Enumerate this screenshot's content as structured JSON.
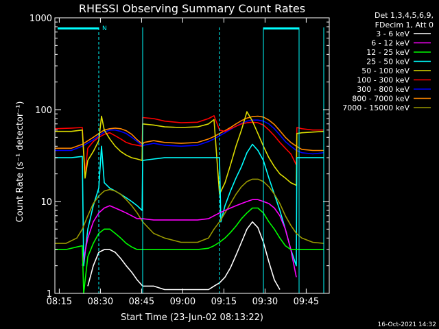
{
  "chart_data": {
    "type": "line",
    "title": "RHESSI Observing Summary Count Rates",
    "xlabel": "Start Time (23-Jun-02 08:13:22)",
    "ylabel": "Count Rate (s⁻¹ detector⁻¹)",
    "yscale": "log",
    "ylim": [
      1,
      1000
    ],
    "xlim_minutes": [
      0,
      100
    ],
    "x_ticks": [
      {
        "label": "08:15",
        "t": 1.6
      },
      {
        "label": "08:30",
        "t": 16.6
      },
      {
        "label": "08:45",
        "t": 31.6
      },
      {
        "label": "09:00",
        "t": 46.6
      },
      {
        "label": "09:15",
        "t": 61.6
      },
      {
        "label": "09:30",
        "t": 76.6
      },
      {
        "label": "09:45",
        "t": 91.6
      }
    ],
    "y_ticks": [
      {
        "label": "1",
        "v": 1
      },
      {
        "label": "10",
        "v": 10
      },
      {
        "label": "100",
        "v": 100
      },
      {
        "label": "1000",
        "v": 1000
      }
    ],
    "legend": {
      "placement": "right",
      "header": [
        "Det 1,3,4,5,6,9,",
        "FDecim 1, Att 0"
      ],
      "entries": [
        {
          "label": "3 - 6 keV",
          "color": "#000000"
        },
        {
          "label": "6 - 12 keV",
          "color": "#ff00ff"
        },
        {
          "label": "12 - 25 keV",
          "color": "#00ff00"
        },
        {
          "label": "25 - 50 keV",
          "color": "#00ffff"
        },
        {
          "label": "50 - 100 keV",
          "color": "#dddd00"
        },
        {
          "label": "100 - 300 keV",
          "color": "#ff0000"
        },
        {
          "label": "300 - 800 keV",
          "color": "#0000ff"
        },
        {
          "label": "800 - 7000 keV",
          "color": "#ff8800"
        },
        {
          "label": "7000 - 15000 keV",
          "color": "#999900"
        }
      ]
    },
    "flag_marker": "N",
    "night_periods_minutes": [
      [
        1,
        16
      ],
      [
        76,
        89
      ]
    ],
    "saa_boundaries_minutes": [
      16,
      32,
      60,
      76,
      89,
      98
    ],
    "series": [
      {
        "color": "#ff8800",
        "x": [
          0,
          6,
          10,
          14,
          16,
          18,
          20,
          22,
          24,
          26,
          28,
          30,
          32,
          32.5,
          36,
          40,
          46,
          52,
          56,
          58,
          60,
          62,
          64,
          66,
          68,
          70,
          72,
          74,
          76,
          78,
          80,
          82,
          84,
          86,
          88,
          90,
          94,
          98
        ],
        "y": [
          38,
          38,
          42,
          50,
          55,
          60,
          62,
          63,
          62,
          59,
          54,
          47,
          42,
          44,
          46,
          44,
          43,
          44,
          48,
          51,
          55,
          59,
          64,
          70,
          76,
          81,
          84,
          85,
          83,
          77,
          69,
          59,
          50,
          44,
          40,
          37,
          36,
          36
        ]
      },
      {
        "color": "#0000ff",
        "x": [
          0,
          6,
          10,
          14,
          16,
          18,
          20,
          22,
          24,
          26,
          28,
          30,
          32,
          32.5,
          36,
          40,
          46,
          52,
          56,
          58,
          60,
          62,
          64,
          66,
          68,
          70,
          72,
          74,
          76,
          78,
          80,
          82,
          84,
          86,
          88,
          90,
          94,
          98
        ],
        "y": [
          36,
          36,
          40,
          47,
          52,
          57,
          60,
          60,
          58,
          55,
          50,
          45,
          40,
          41,
          43,
          41,
          40,
          41,
          45,
          48,
          52,
          56,
          61,
          66,
          71,
          75,
          77,
          77,
          75,
          70,
          62,
          53,
          45,
          40,
          36,
          34,
          33,
          34
        ]
      },
      {
        "color": "#ff0000",
        "x": [
          0,
          6,
          10,
          11,
          12,
          14,
          16,
          18,
          20,
          22,
          24,
          26,
          28,
          30,
          31.8,
          32,
          36,
          40,
          46,
          52,
          56,
          58,
          60,
          62,
          64,
          66,
          68,
          70,
          72,
          74,
          76,
          78,
          80,
          82,
          84,
          86,
          88,
          88.2,
          90,
          94,
          98
        ],
        "y": [
          62,
          63,
          64,
          20,
          38,
          45,
          50,
          54,
          56,
          52,
          48,
          44,
          42,
          41,
          40,
          82,
          80,
          75,
          72,
          73,
          80,
          86,
          60,
          58,
          62,
          66,
          70,
          72,
          73,
          72,
          68,
          60,
          52,
          44,
          38,
          33,
          25,
          64,
          62,
          60,
          60
        ]
      },
      {
        "color": "#dddd00",
        "x": [
          0,
          6,
          10,
          11,
          12,
          14,
          16,
          17,
          18,
          20,
          22,
          24,
          26,
          28,
          30,
          31.8,
          32,
          36,
          40,
          46,
          52,
          56,
          58,
          60,
          62,
          64,
          66,
          68,
          70,
          72,
          74,
          76,
          78,
          80,
          82,
          84,
          86,
          88,
          88.2,
          90,
          94,
          98
        ],
        "y": [
          58,
          58,
          60,
          18,
          28,
          35,
          46,
          85,
          60,
          48,
          40,
          35,
          32,
          30,
          29,
          28,
          70,
          68,
          65,
          64,
          65,
          70,
          78,
          12,
          16,
          25,
          40,
          60,
          95,
          75,
          55,
          40,
          30,
          24,
          20,
          18,
          16,
          15,
          55,
          56,
          57,
          58
        ]
      },
      {
        "color": "#00ffff",
        "x": [
          0,
          6,
          10,
          10.5,
          12,
          14,
          16,
          17,
          18,
          20,
          22,
          24,
          26,
          28,
          30,
          31.8,
          32,
          36,
          40,
          46,
          52,
          56,
          58,
          60,
          60.5,
          62,
          64,
          66,
          68,
          70,
          72,
          74,
          76,
          78,
          80,
          82,
          84,
          86,
          88,
          88.2,
          90,
          94,
          98
        ],
        "y": [
          30,
          30,
          31,
          2,
          5,
          9,
          14,
          40,
          16,
          14,
          13,
          12,
          11,
          10,
          9,
          8,
          28,
          29,
          30,
          30,
          30,
          30,
          30,
          30,
          6,
          9,
          13,
          18,
          24,
          34,
          42,
          36,
          28,
          18,
          12,
          8,
          5,
          3,
          2,
          30,
          30,
          30,
          30
        ]
      },
      {
        "color": "#999900",
        "x": [
          0,
          4,
          8,
          10,
          12,
          14,
          16,
          18,
          20,
          22,
          24,
          26,
          28,
          30,
          32,
          36,
          40,
          46,
          52,
          56,
          58,
          60,
          62,
          64,
          66,
          68,
          70,
          72,
          74,
          76,
          78,
          80,
          82,
          84,
          86,
          88,
          90,
          94,
          98
        ],
        "y": [
          3.5,
          3.5,
          4,
          5,
          7,
          9.5,
          11.5,
          13,
          13.5,
          13,
          12,
          10.5,
          9,
          7.5,
          6,
          4.5,
          4,
          3.6,
          3.6,
          4,
          5,
          6,
          7.5,
          9.5,
          12,
          14.5,
          16.5,
          17.5,
          17.5,
          16.5,
          14.5,
          12,
          9.5,
          7,
          5.5,
          4.5,
          4,
          3.6,
          3.5
        ]
      },
      {
        "color": "#ff00ff",
        "x": [
          10,
          12,
          14,
          16,
          18,
          20,
          22,
          24,
          26,
          28,
          30,
          32,
          36,
          40,
          46,
          52,
          56,
          58,
          60,
          62,
          64,
          66,
          68,
          70,
          72,
          74,
          76,
          78,
          80,
          82,
          84,
          86,
          88
        ],
        "y": [
          2,
          4,
          6,
          7.5,
          8.5,
          9,
          8.5,
          8,
          7.5,
          7,
          6.5,
          6.5,
          6.3,
          6.3,
          6.3,
          6.3,
          6.5,
          7,
          7.5,
          8,
          8.5,
          9,
          9.5,
          10,
          10.5,
          10.5,
          10,
          9.5,
          8.5,
          7,
          5,
          3,
          1.5
        ]
      },
      {
        "color": "#00ff00",
        "x": [
          0,
          4,
          8,
          10,
          10.5,
          12,
          14,
          16,
          18,
          20,
          22,
          24,
          26,
          28,
          30,
          32,
          36,
          40,
          46,
          52,
          56,
          58,
          60,
          62,
          64,
          66,
          68,
          70,
          72,
          74,
          76,
          78,
          80,
          82,
          84,
          86,
          88,
          90,
          94,
          98
        ],
        "y": [
          3,
          3,
          3.2,
          3.3,
          1,
          2.5,
          3.5,
          4.5,
          5,
          5,
          4.5,
          4,
          3.5,
          3.2,
          3,
          3,
          3,
          3,
          3,
          3,
          3.1,
          3.3,
          3.6,
          4,
          4.6,
          5.4,
          6.5,
          7.5,
          8.5,
          8.5,
          7.5,
          6,
          5,
          4,
          3.3,
          3,
          3,
          3,
          3,
          3
        ]
      },
      {
        "color": "#000000",
        "x": [
          12,
          14,
          16,
          18,
          20,
          22,
          24,
          26,
          28,
          30,
          32,
          36,
          40,
          46,
          52,
          56,
          58,
          60,
          62,
          64,
          66,
          68,
          70,
          72,
          74,
          76,
          78,
          80,
          82
        ],
        "y": [
          1.2,
          2,
          2.8,
          3,
          3,
          2.8,
          2.4,
          2,
          1.7,
          1.4,
          1.2,
          1.2,
          1.1,
          1.1,
          1.1,
          1.1,
          1.2,
          1.3,
          1.5,
          1.9,
          2.6,
          3.6,
          5,
          6,
          5.2,
          3.6,
          2.2,
          1.4,
          1.1
        ]
      }
    ]
  },
  "footer_timestamp": "16-Oct-2021 14:32"
}
